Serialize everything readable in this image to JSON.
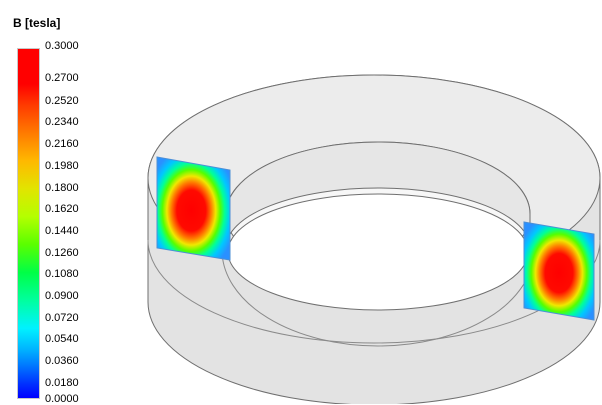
{
  "legend": {
    "title": "B [tesla]",
    "ticks": [
      "0.3000",
      "0.2700",
      "0.2520",
      "0.2340",
      "0.2160",
      "0.1980",
      "0.1800",
      "0.1620",
      "0.1440",
      "0.1260",
      "0.1080",
      "0.0900",
      "0.0720",
      "0.0540",
      "0.0360",
      "0.0180",
      "0.0000"
    ],
    "colors": {
      "max": "#ff0000",
      "mid": "#00ff46",
      "min": "#0000ff"
    }
  },
  "scene": {
    "object": "torus-core",
    "colors": {
      "body": "#e4e4e4",
      "edge": "#6f6f6f",
      "field_high": "#ff0000",
      "field_low": "#1aa8ff"
    }
  }
}
